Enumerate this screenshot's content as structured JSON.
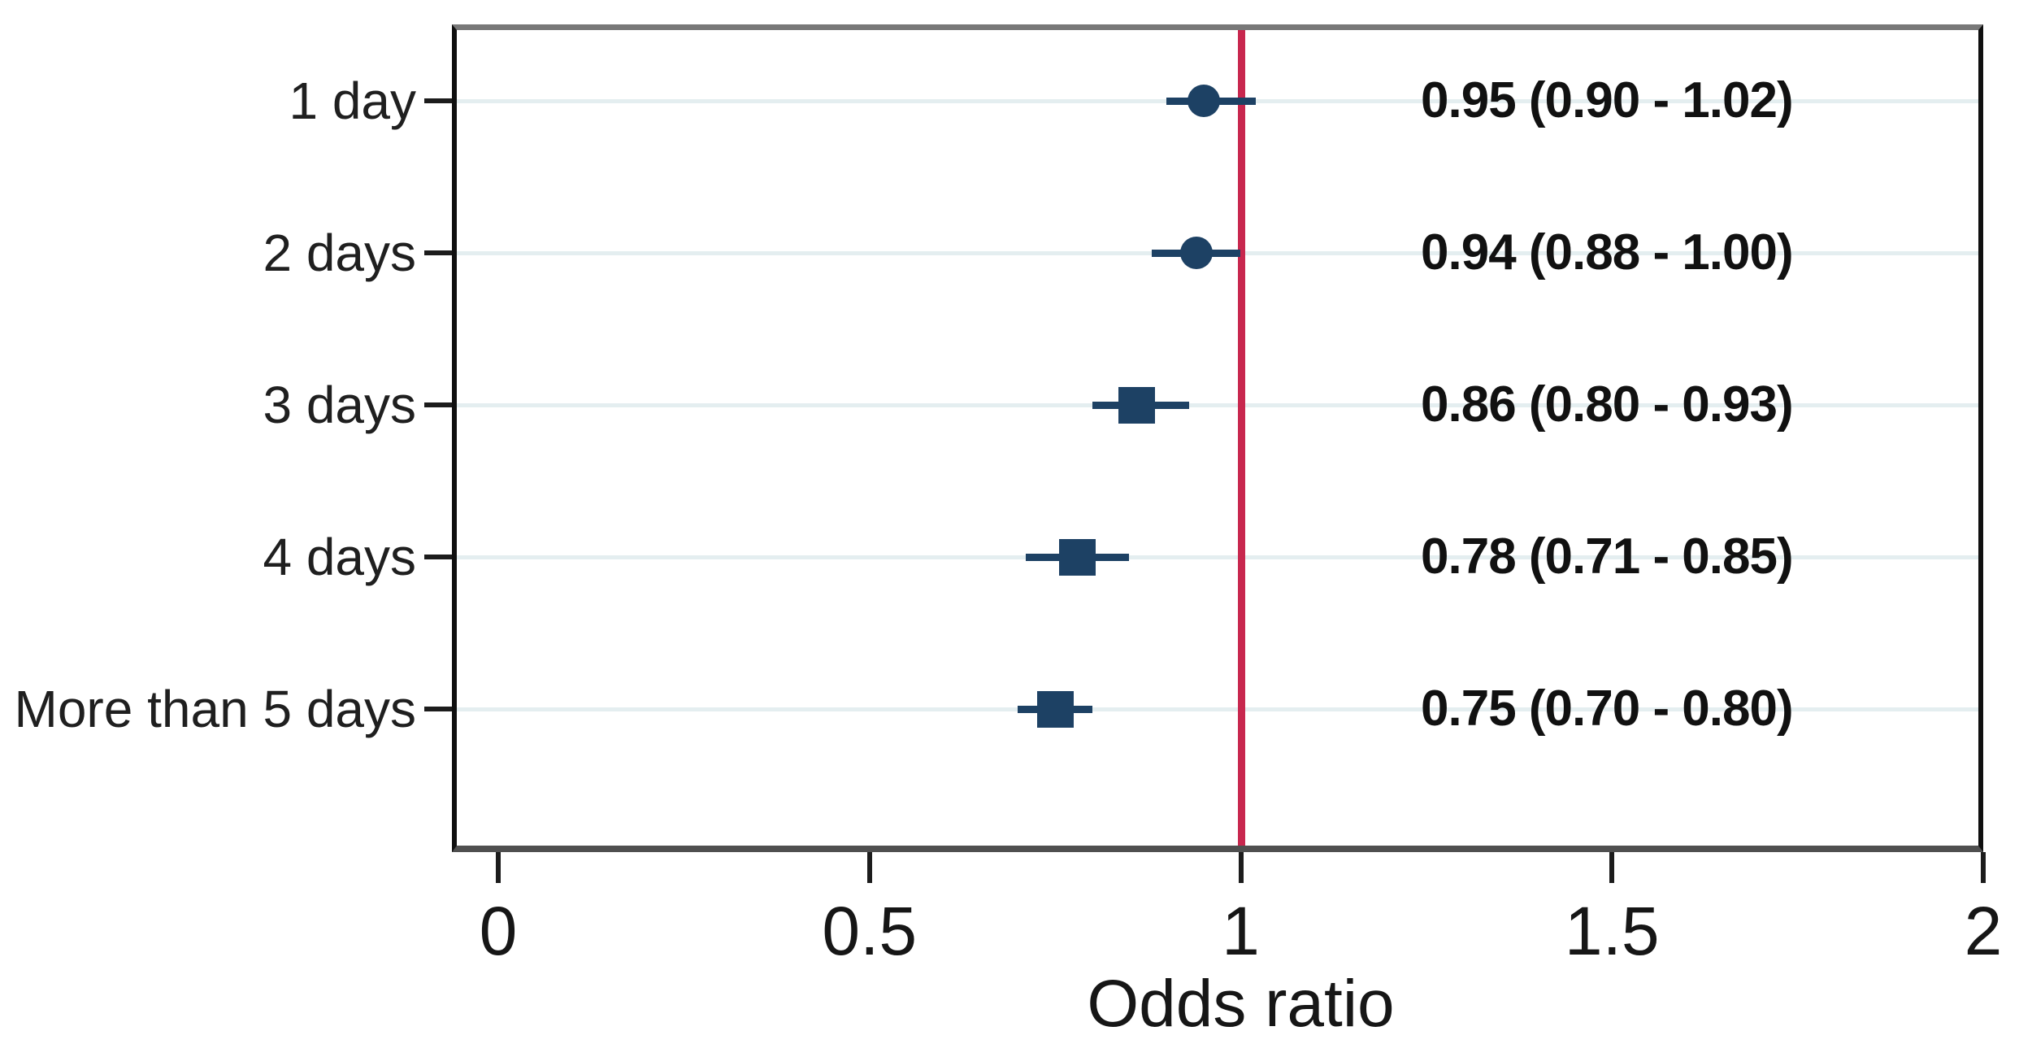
{
  "chart_data": {
    "type": "scatter",
    "subtype": "forest-plot",
    "title": "",
    "xlabel": "Odds ratio",
    "ylabel": "",
    "xlim": [
      -0.06,
      2.0
    ],
    "x_ticks": [
      0,
      0.5,
      1,
      1.5,
      2
    ],
    "x_tick_labels": [
      "0",
      "0.5",
      "1",
      "1.5",
      "2"
    ],
    "reference_line_x": 1,
    "grid": true,
    "legend": false,
    "categories": [
      "1 day",
      "2 days",
      "3 days",
      "4 days",
      "More than 5 days"
    ],
    "rows": [
      {
        "label": "1 day",
        "or": 0.95,
        "ci_low": 0.9,
        "ci_high": 1.02,
        "marker": "circle",
        "annotation": "0.95 (0.90 - 1.02)"
      },
      {
        "label": "2 days",
        "or": 0.94,
        "ci_low": 0.88,
        "ci_high": 1.0,
        "marker": "circle",
        "annotation": "0.94 (0.88 - 1.00)"
      },
      {
        "label": "3 days",
        "or": 0.86,
        "ci_low": 0.8,
        "ci_high": 0.93,
        "marker": "square",
        "annotation": "0.86 (0.80 - 0.93)"
      },
      {
        "label": "4 days",
        "or": 0.78,
        "ci_low": 0.71,
        "ci_high": 0.85,
        "marker": "square",
        "annotation": "0.78 (0.71 - 0.85)"
      },
      {
        "label": "More than 5 days",
        "or": 0.75,
        "ci_low": 0.7,
        "ci_high": 0.8,
        "marker": "square",
        "annotation": "0.75 (0.70 - 0.80)"
      }
    ],
    "colors": {
      "marker": "#1d4164",
      "ci_line": "#1d4164",
      "reference_line": "#c8274e",
      "gridline": "#e4eef0",
      "axis_text": "#1c1c1c",
      "frame_top": "#787878",
      "frame_bottom": "#4f4f4f",
      "frame_sides": "#0f0f0f",
      "background": "#ffffff"
    }
  }
}
